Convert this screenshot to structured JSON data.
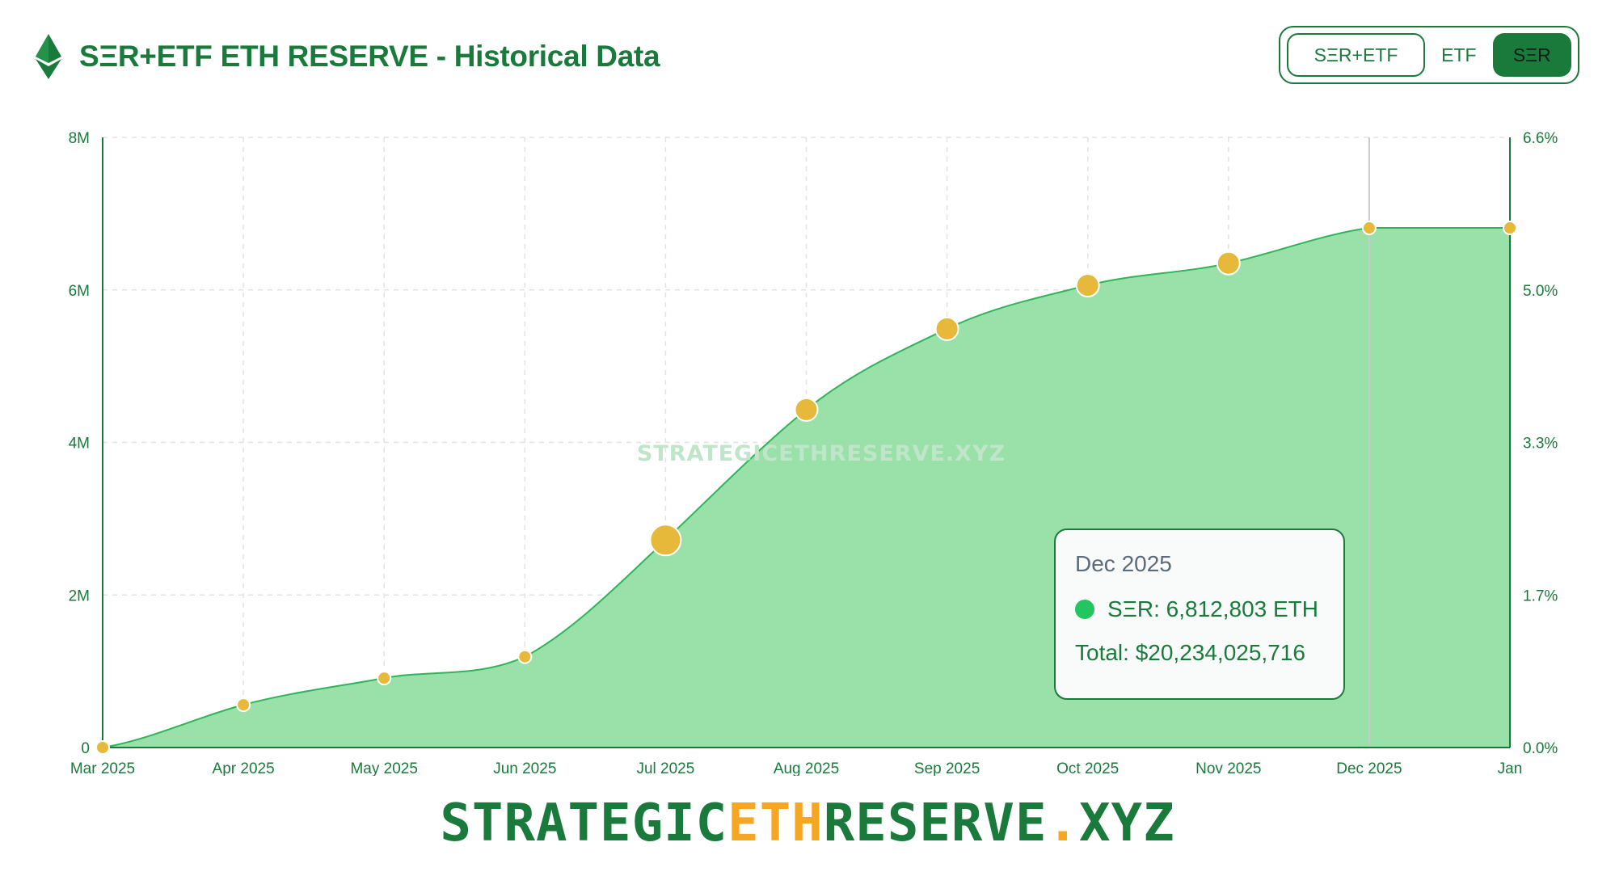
{
  "header": {
    "title": "SΞR+ETF ETH RESERVE - Historical Data",
    "toggle": [
      "SΞR+ETF",
      "ETF",
      "SΞR"
    ],
    "active_toggle": "SΞR"
  },
  "colors": {
    "brand_green": "#1a7a3c",
    "area_fill": "#9ae0a9",
    "area_line": "#2fb559",
    "point_fill": "#e6b93a",
    "accent_orange": "#f5a623",
    "legend_dot": "#22c55e"
  },
  "watermark": "STRATEGICETHRESERVE.XYZ",
  "tooltip": {
    "title": "Dec 2025",
    "series_line": "SΞR: 6,812,803 ETH",
    "total_line": "Total: $20,234,025,716"
  },
  "brand": {
    "part1": "STRATEGIC",
    "part2": "ETH",
    "part3": "RESERVE",
    "part4": ".",
    "part5": "XYZ"
  },
  "chart_data": {
    "type": "area",
    "x": [
      "Mar 2025",
      "Apr 2025",
      "May 2025",
      "Jun 2025",
      "Jul 2025",
      "Aug 2025",
      "Sep 2025",
      "Oct 2025",
      "Nov 2025",
      "Dec 2025",
      "Jan"
    ],
    "series": [
      {
        "name": "SΞR",
        "values": [
          0,
          560000,
          910000,
          1190000,
          2720000,
          4430000,
          5490000,
          6060000,
          6350000,
          6812803,
          6812803
        ],
        "point_sizes": [
          "small",
          "small",
          "small",
          "small",
          "large",
          "medium",
          "medium",
          "medium",
          "medium",
          "small",
          "small"
        ]
      }
    ],
    "ylim": [
      0,
      8000000
    ],
    "yticks": [
      "0",
      "2M",
      "4M",
      "6M",
      "8M"
    ],
    "ylim_right": [
      0,
      6.6
    ],
    "yticks_right": [
      "0.0%",
      "1.7%",
      "3.3%",
      "5.0%",
      "6.6%"
    ],
    "xlabel": "",
    "ylabel": "",
    "grid": true,
    "highlighted_point": "Dec 2025"
  }
}
